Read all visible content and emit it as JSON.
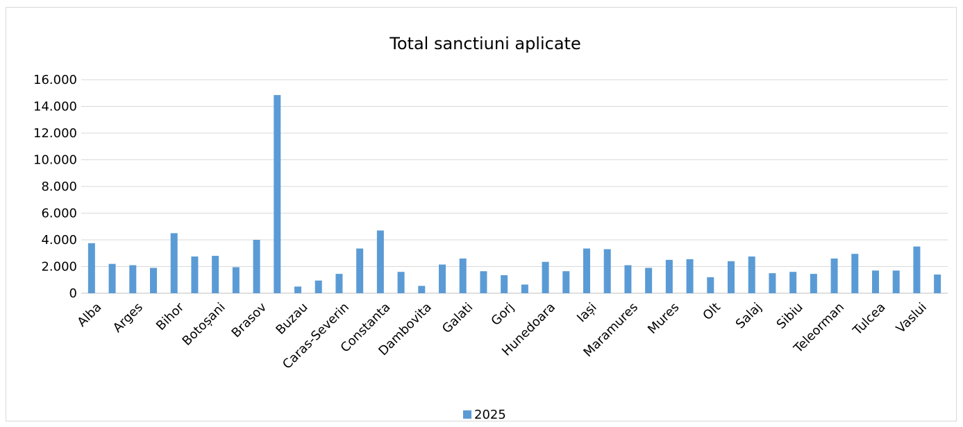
{
  "chart_data": {
    "type": "bar",
    "title": "Total sanctiuni aplicate",
    "xlabel": "",
    "ylabel": "",
    "ylim": [
      0,
      16000
    ],
    "yticks": [
      0,
      2000,
      4000,
      6000,
      8000,
      10000,
      12000,
      14000,
      16000
    ],
    "ytick_labels": [
      "0",
      "2.000",
      "4.000",
      "6.000",
      "8.000",
      "10.000",
      "12.000",
      "14.000",
      "16.000"
    ],
    "grid": true,
    "legend_position": "bottom",
    "bar_color": "#5b9bd5",
    "categories": [
      "Alba",
      "",
      "Arges",
      "",
      "Bihor",
      "",
      "Botoșani",
      "",
      "Brasov",
      "",
      "Buzau",
      "",
      "Caras-Severin",
      "",
      "Constanta",
      "",
      "Dambovita",
      "",
      "Galati",
      "",
      "Gorj",
      "",
      "Hunedoara",
      "",
      "Iași",
      "",
      "Maramures",
      "",
      "Mures",
      "",
      "Olt",
      "",
      "Salaj",
      "",
      "Sibiu",
      "",
      "Teleorman",
      "",
      "Tulcea",
      "",
      "Vaslui",
      ""
    ],
    "series": [
      {
        "name": "2025",
        "values": [
          3750,
          2200,
          2100,
          1900,
          4500,
          2750,
          2800,
          1950,
          4000,
          14850,
          500,
          950,
          1450,
          3350,
          4700,
          1600,
          550,
          2150,
          2600,
          1650,
          1350,
          650,
          2350,
          1650,
          3350,
          3300,
          2100,
          1900,
          2500,
          2550,
          1200,
          2400,
          2750,
          1500,
          1600,
          1450,
          2600,
          2950,
          1700,
          1700,
          3500,
          1400
        ]
      }
    ]
  }
}
